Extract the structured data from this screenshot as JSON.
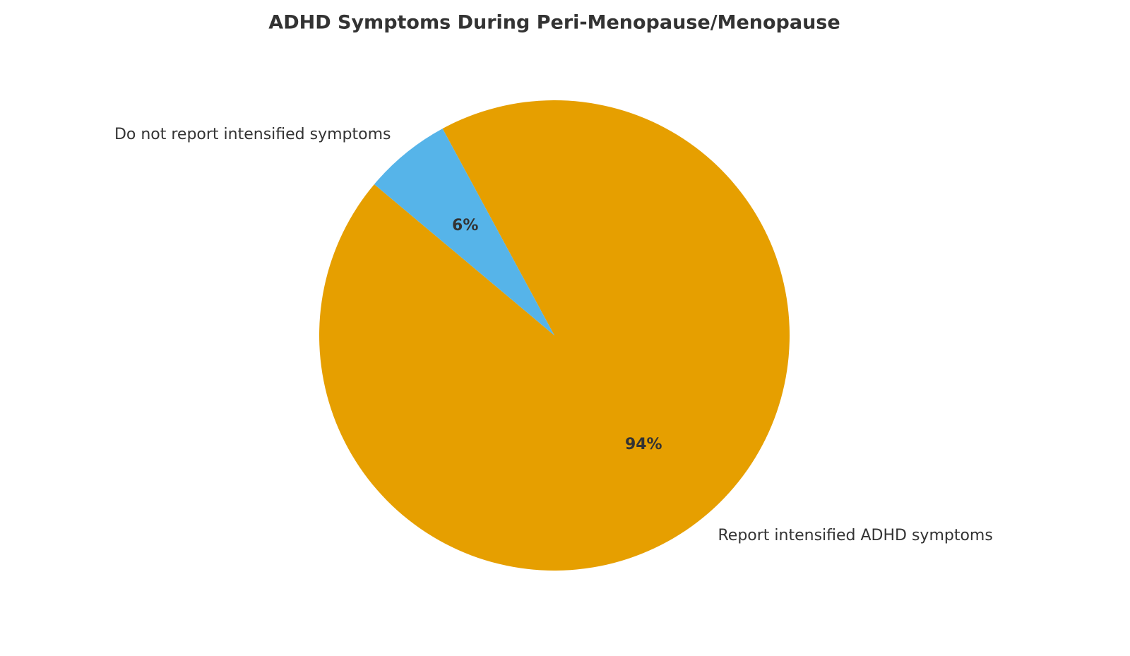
{
  "chart_data": {
    "type": "pie",
    "title": "ADHD Symptoms During Peri-Menopause/Menopause",
    "categories": [
      "Report intensified ADHD symptoms",
      "Do not report intensified symptoms"
    ],
    "values": [
      94,
      6
    ],
    "value_labels": [
      "94%",
      "6%"
    ],
    "colors": [
      "#E69F00",
      "#56B4E9"
    ]
  }
}
